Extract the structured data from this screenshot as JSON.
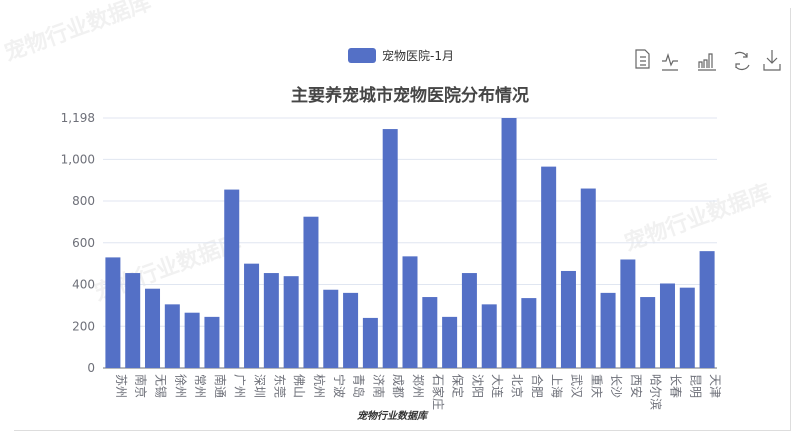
{
  "watermark": "宠物行业数据库",
  "toolbar": [
    "data-view-icon",
    "line-chart-icon",
    "bar-chart-icon",
    "refresh-icon",
    "download-icon"
  ],
  "chart_data": {
    "type": "bar",
    "title": "主要养宠城市宠物医院分布情况",
    "legend": {
      "position": "top",
      "entries": [
        "宠物医院-1月"
      ]
    },
    "color": "#5470c6",
    "grid": true,
    "ylim": [
      0,
      1198
    ],
    "yticks": [
      "0",
      "200",
      "400",
      "600",
      "800",
      "1,000",
      "1,198"
    ],
    "categories": [
      "苏州",
      "南京",
      "无锡",
      "徐州",
      "常州",
      "南通",
      "广州",
      "深圳",
      "东莞",
      "佛山",
      "杭州",
      "宁波",
      "青岛",
      "济南",
      "成都",
      "郑州",
      "石家庄",
      "保定",
      "沈阳",
      "大连",
      "北京",
      "合肥",
      "上海",
      "武汉",
      "重庆",
      "长沙",
      "西安",
      "哈尔滨",
      "长春",
      "昆明",
      "天津"
    ],
    "series": [
      {
        "name": "宠物医院-1月",
        "values": [
          530,
          455,
          380,
          305,
          265,
          245,
          855,
          500,
          455,
          440,
          725,
          375,
          360,
          240,
          1145,
          535,
          340,
          245,
          455,
          305,
          1198,
          335,
          965,
          465,
          860,
          360,
          520,
          340,
          405,
          385,
          560
        ]
      }
    ]
  }
}
